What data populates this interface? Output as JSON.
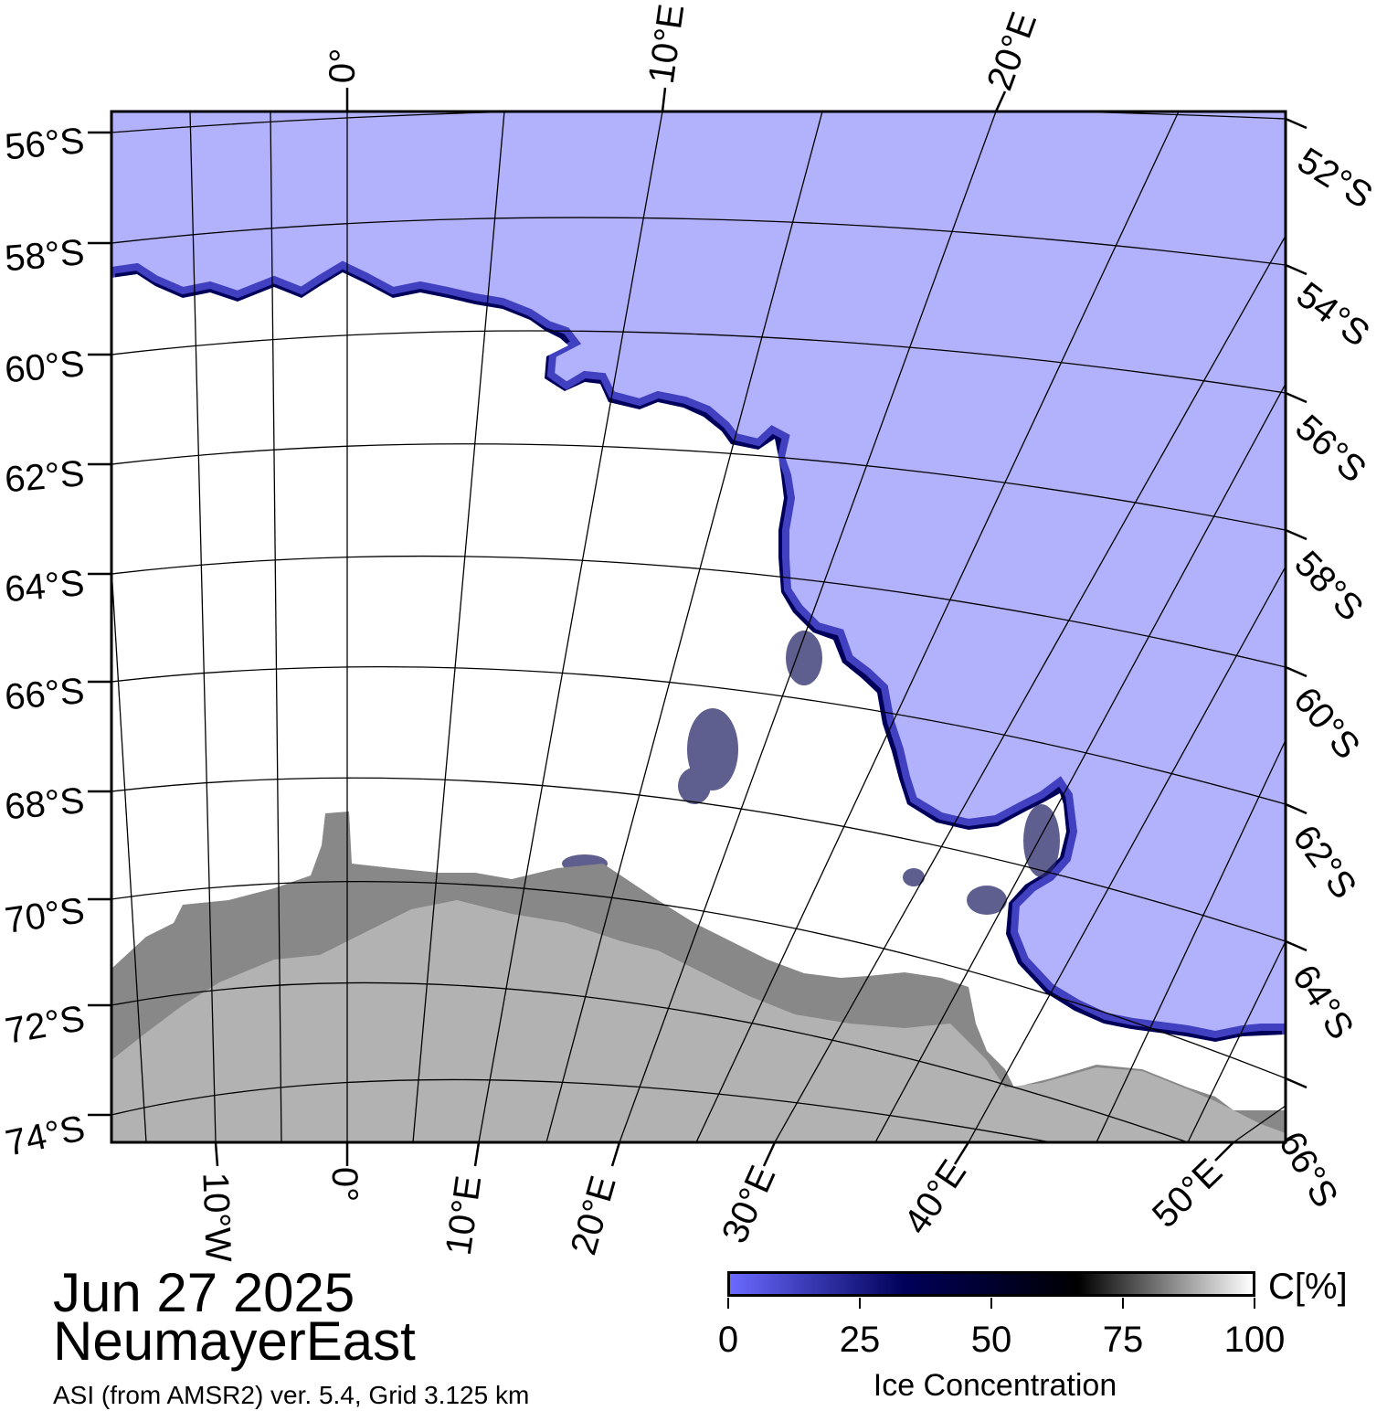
{
  "map": {
    "title_date": "Jun 27 2025",
    "region": "NeumayerEast",
    "product": "ASI (from AMSR2) ver. 5.4,  Grid 3.125 km",
    "colors": {
      "open_water": "#b2b2fc",
      "ice_full": "#ffffff",
      "ice_edge_low": "#6a6aff",
      "ice_edge_mid": "#00005a",
      "land_ice_shelf": "#888888",
      "land": "#b2b2b2",
      "graticule": "#000000"
    },
    "lat_labels_left": [
      "56°S",
      "58°S",
      "60°S",
      "62°S",
      "64°S",
      "66°S",
      "68°S",
      "70°S",
      "72°S",
      "74°S"
    ],
    "lat_labels_right": [
      "52°S",
      "54°S",
      "56°S",
      "58°S",
      "60°S",
      "62°S",
      "64°S",
      "66°S"
    ],
    "lon_labels_top": [
      "0°",
      "10°E",
      "20°E"
    ],
    "lon_labels_bottom": [
      "10°W",
      "0°",
      "10°E",
      "20°E",
      "30°E",
      "40°E",
      "50°E"
    ]
  },
  "legend": {
    "unit": "C[%]",
    "title": "Ice Concentration",
    "ticks": [
      "0",
      "25",
      "50",
      "75",
      "100"
    ],
    "gradient": [
      "#6a6aff",
      "#00005a",
      "#000000",
      "#ffffff"
    ]
  }
}
